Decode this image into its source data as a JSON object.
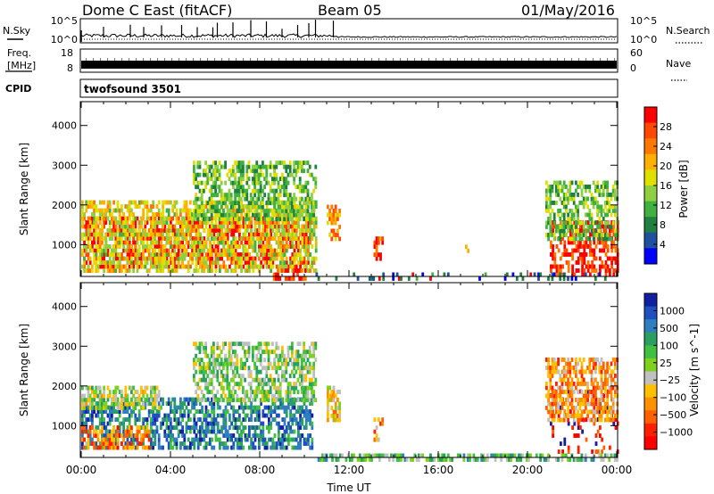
{
  "header": {
    "title": "Dome C East (fitACF)",
    "beam": "Beam 05",
    "date": "01/May/2016"
  },
  "chart_data": [
    {
      "type": "line",
      "panel": "nsky-nsearch",
      "left_label": "N.Sky",
      "right_label": "N.Search",
      "left_ticks": [
        "10^5",
        "10^0"
      ],
      "right_ticks": [
        "10^5",
        "10^0"
      ],
      "series": [
        {
          "name": "N.Sky",
          "style": "solid",
          "level": "low",
          "spikes_hours": [
            1.0,
            2.2,
            2.8,
            3.6,
            4.5,
            5.2,
            5.9,
            6.1,
            6.8,
            7.6,
            8.3,
            9.0,
            9.7,
            10.2,
            10.5,
            11.3
          ]
        },
        {
          "name": "N.Search",
          "style": "dotted"
        }
      ]
    },
    {
      "type": "line",
      "panel": "freq-nave",
      "left_label_lines": [
        "Freq.",
        "[MHz]"
      ],
      "right_label": "Nave",
      "left_ticks": [
        "18",
        "8"
      ],
      "right_ticks": [
        "60",
        "0"
      ],
      "series": [
        {
          "name": "Freq.",
          "style": "solid",
          "value_mhz": 10
        },
        {
          "name": "Nave",
          "style": "dotted"
        }
      ]
    },
    {
      "type": "table",
      "panel": "cpid",
      "label": "CPID",
      "value": "twofsound 3501"
    },
    {
      "type": "heatmap",
      "panel": "power",
      "ylabel": "Slant Range [km]",
      "y_ticks": [
        "1000",
        "2000",
        "3000",
        "4000"
      ],
      "ylim": [
        200,
        4600
      ],
      "xlim": [
        0,
        24
      ],
      "colorbar_label": "Power [dB]",
      "colorbar_ticks": [
        "28",
        "24",
        "20",
        "16",
        "12",
        "8",
        "4"
      ],
      "colorbar_colors": [
        "#ff0000",
        "#ff4800",
        "#ff7800",
        "#ffb000",
        "#e0e000",
        "#90d040",
        "#40b040",
        "#208040",
        "#2050a0",
        "#0000ff"
      ],
      "regions": [
        {
          "t0": 0.0,
          "t1": 10.2,
          "r0": 500,
          "r1": 1800,
          "level": 0.95
        },
        {
          "t0": 0.0,
          "t1": 10.5,
          "r0": 400,
          "r1": 2200,
          "level": 0.55
        },
        {
          "t0": 5.0,
          "t1": 10.5,
          "r0": 1700,
          "r1": 3200,
          "level": 0.4
        },
        {
          "t0": 8.5,
          "t1": 10.0,
          "r0": 200,
          "r1": 450,
          "level": 0.9
        },
        {
          "t0": 11.0,
          "t1": 11.6,
          "r0": 1200,
          "r1": 2100,
          "level": 0.7
        },
        {
          "t0": 13.1,
          "t1": 13.5,
          "r0": 700,
          "r1": 1300,
          "level": 0.85
        },
        {
          "t0": 17.2,
          "t1": 17.3,
          "r0": 900,
          "r1": 1100,
          "level": 0.5
        },
        {
          "t0": 21.0,
          "t1": 24.0,
          "r0": 300,
          "r1": 1700,
          "level": 0.9
        },
        {
          "t0": 20.8,
          "t1": 24.0,
          "r0": 1200,
          "r1": 2700,
          "level": 0.4
        },
        {
          "t0": 10.5,
          "t1": 24.0,
          "r0": 200,
          "r1": 400,
          "level": 0.15
        }
      ]
    },
    {
      "type": "heatmap",
      "panel": "velocity",
      "ylabel": "Slant Range [km]",
      "y_ticks": [
        "1000",
        "2000",
        "3000",
        "4000"
      ],
      "ylim": [
        200,
        4600
      ],
      "xlim": [
        0,
        24
      ],
      "xlabel": "Time UT",
      "x_ticks": [
        "00:00",
        "04:00",
        "08:00",
        "12:00",
        "16:00",
        "20:00",
        "00:00"
      ],
      "colorbar_label": "Velocity [m s^-1]",
      "colorbar_ticks": [
        "1000",
        "500",
        "100",
        "25",
        "−25",
        "−100",
        "−500",
        "−1000"
      ],
      "colorbar_colors": [
        "#1020a0",
        "#2050c0",
        "#2f7fbf",
        "#2aa060",
        "#40c040",
        "#80d020",
        "#c0c0c0",
        "#ffc000",
        "#ff9000",
        "#ff6000",
        "#ff2000",
        "#ff0000"
      ],
      "regions": [
        {
          "t0": 0.0,
          "t1": 10.3,
          "r0": 500,
          "r1": 1800,
          "level": 0.78
        },
        {
          "t0": 0.0,
          "t1": 3.5,
          "r0": 1500,
          "r1": 2100,
          "level": 0.5
        },
        {
          "t0": 0.0,
          "t1": 3.0,
          "r0": 500,
          "r1": 1100,
          "level": 0.25
        },
        {
          "t0": 5.0,
          "t1": 10.5,
          "r0": 1700,
          "r1": 3200,
          "level": 0.55
        },
        {
          "t0": 11.0,
          "t1": 11.6,
          "r0": 1200,
          "r1": 2100,
          "level": 0.4
        },
        {
          "t0": 13.1,
          "t1": 13.5,
          "r0": 700,
          "r1": 1300,
          "level": 0.3
        },
        {
          "t0": 21.0,
          "t1": 24.0,
          "r0": 400,
          "r1": 2000,
          "level": 0.1
        },
        {
          "t0": 20.8,
          "t1": 24.0,
          "r0": 1200,
          "r1": 2800,
          "level": 0.3
        },
        {
          "t0": 10.5,
          "t1": 24.0,
          "r0": 200,
          "r1": 400,
          "level": 0.6
        }
      ]
    }
  ]
}
